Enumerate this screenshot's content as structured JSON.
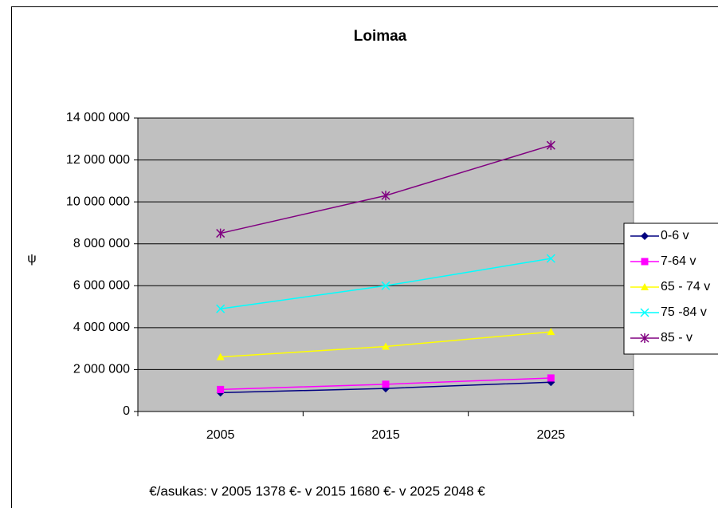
{
  "chart_data": {
    "type": "line",
    "title": "Loimaa",
    "y_label": "ψ",
    "footer": "€/asukas: v 2005 1378 €- v 2015 1680 €- v 2025 2048 €",
    "categories": [
      "2005",
      "2015",
      "2025"
    ],
    "series": [
      {
        "name": "0-6 v",
        "color": "#000080",
        "marker": "diamond",
        "values": [
          900000,
          1100000,
          1400000
        ]
      },
      {
        "name": "7-64 v",
        "color": "#ff00ff",
        "marker": "square",
        "values": [
          1050000,
          1300000,
          1600000
        ]
      },
      {
        "name": "65 - 74 v",
        "color": "#ffff00",
        "marker": "triangle",
        "values": [
          2600000,
          3100000,
          3800000
        ]
      },
      {
        "name": "75 -84 v",
        "color": "#00ffff",
        "marker": "x",
        "values": [
          4900000,
          6000000,
          7300000
        ]
      },
      {
        "name": "85 - v",
        "color": "#800080",
        "marker": "star",
        "values": [
          8500000,
          10300000,
          12700000
        ]
      }
    ],
    "ylim": [
      0,
      14000000
    ],
    "yticks": [
      0,
      {
        "value": 2000000,
        "label": "2 000 000"
      },
      {
        "value": 4000000,
        "label": "4 000 000"
      },
      {
        "value": 6000000,
        "label": "6 000 000"
      },
      {
        "value": 8000000,
        "label": "8 000 000"
      },
      {
        "value": 10000000,
        "label": "10 000 000"
      },
      {
        "value": 12000000,
        "label": "12 000 000"
      },
      {
        "value": 14000000,
        "label": "14 000 000"
      }
    ],
    "grid": true,
    "plot_background": "#c0c0c0",
    "legend": "right"
  }
}
